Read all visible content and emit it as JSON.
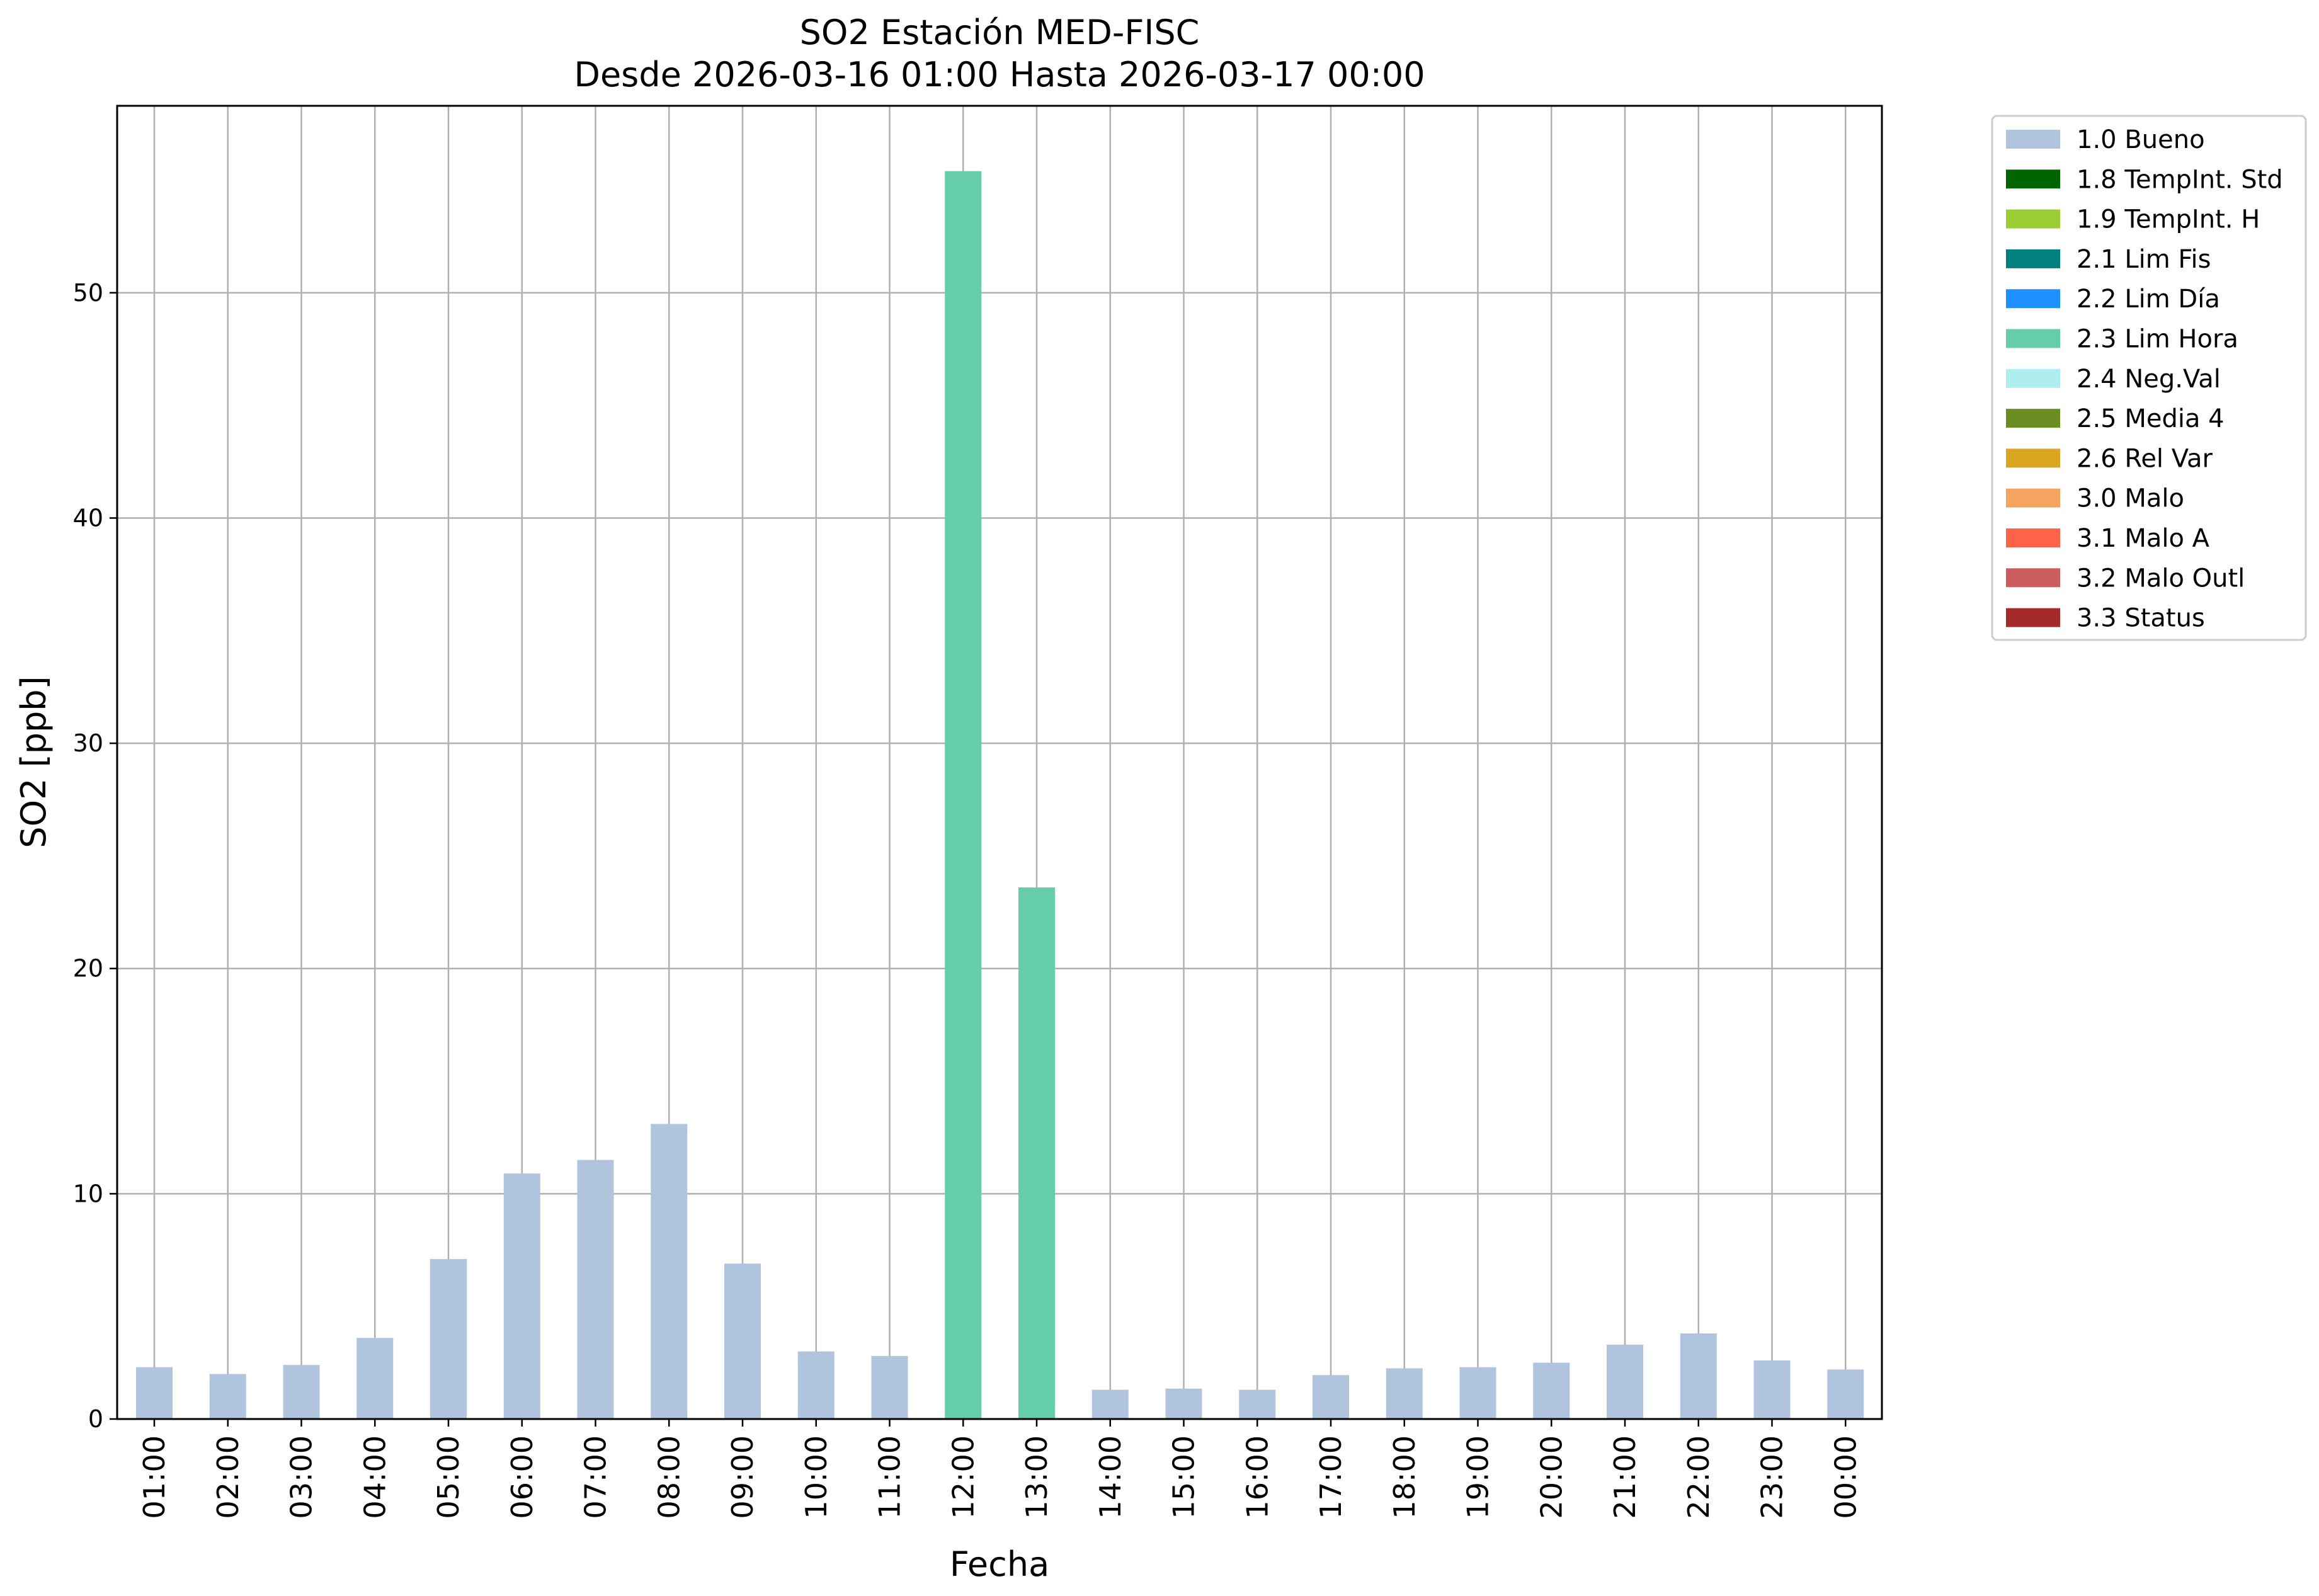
{
  "chart_data": {
    "type": "bar",
    "title": "SO2 Estación MED-FISC",
    "subtitle": "Desde 2026-03-16 01:00 Hasta 2026-03-17 00:00",
    "xlabel": "Fecha",
    "ylabel": "SO2 [ppb]",
    "ylim": [
      0,
      58.3
    ],
    "yticks": [
      0,
      10,
      20,
      30,
      40,
      50
    ],
    "grid": true,
    "legend_position": "outside top-right",
    "categories": [
      "01:00",
      "02:00",
      "03:00",
      "04:00",
      "05:00",
      "06:00",
      "07:00",
      "08:00",
      "09:00",
      "10:00",
      "11:00",
      "12:00",
      "13:00",
      "14:00",
      "15:00",
      "16:00",
      "17:00",
      "18:00",
      "19:00",
      "20:00",
      "21:00",
      "22:00",
      "23:00",
      "00:00"
    ],
    "values": [
      2.3,
      2.0,
      2.4,
      3.6,
      7.1,
      10.9,
      11.5,
      13.1,
      6.9,
      3.0,
      2.8,
      55.4,
      23.6,
      1.3,
      1.35,
      1.3,
      1.95,
      2.25,
      2.3,
      2.5,
      3.3,
      3.8,
      2.6,
      2.2
    ],
    "flags": [
      "1.0 Bueno",
      "1.0 Bueno",
      "1.0 Bueno",
      "1.0 Bueno",
      "1.0 Bueno",
      "1.0 Bueno",
      "1.0 Bueno",
      "1.0 Bueno",
      "1.0 Bueno",
      "1.0 Bueno",
      "1.0 Bueno",
      "2.3 Lim Hora",
      "2.3 Lim Hora",
      "1.0 Bueno",
      "1.0 Bueno",
      "1.0 Bueno",
      "1.0 Bueno",
      "1.0 Bueno",
      "1.0 Bueno",
      "1.0 Bueno",
      "1.0 Bueno",
      "1.0 Bueno",
      "1.0 Bueno",
      "1.0 Bueno"
    ],
    "legend": [
      {
        "label": "1.0 Bueno",
        "color": "#b0c4de"
      },
      {
        "label": "1.8 TempInt. Std",
        "color": "#006400"
      },
      {
        "label": "1.9 TempInt. H",
        "color": "#9acd32"
      },
      {
        "label": "2.1 Lim Fis",
        "color": "#008080"
      },
      {
        "label": "2.2 Lim Día",
        "color": "#1e90ff"
      },
      {
        "label": "2.3 Lim Hora",
        "color": "#66cdaa"
      },
      {
        "label": "2.4 Neg.Val",
        "color": "#afeeee"
      },
      {
        "label": "2.5 Media 4",
        "color": "#6b8e23"
      },
      {
        "label": "2.6 Rel Var",
        "color": "#daa520"
      },
      {
        "label": "3.0 Malo",
        "color": "#f4a460"
      },
      {
        "label": "3.1 Malo A",
        "color": "#ff6347"
      },
      {
        "label": "3.2 Malo Outl",
        "color": "#cd5c5c"
      },
      {
        "label": "3.3 Status",
        "color": "#a52a2a"
      }
    ]
  }
}
